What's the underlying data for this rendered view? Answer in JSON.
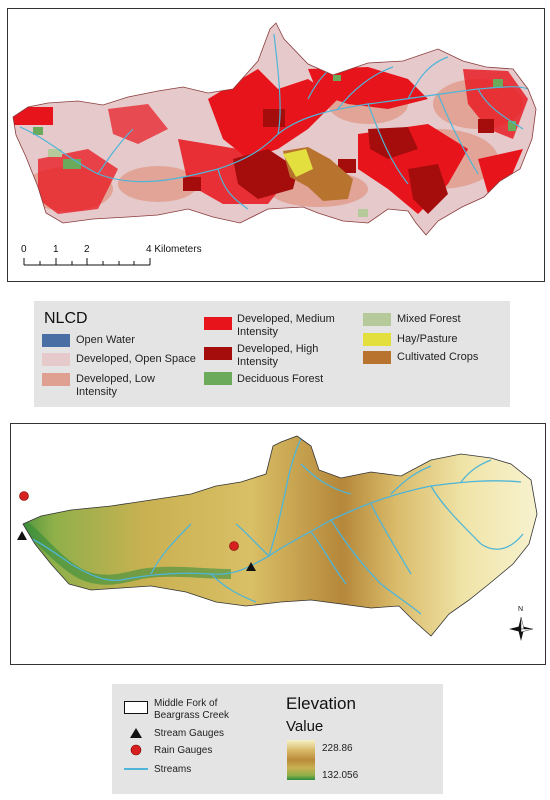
{
  "scale_bar": {
    "labels": [
      "0",
      "1",
      "2",
      "4 Kilometers"
    ]
  },
  "nlcd_legend": {
    "title": "NLCD",
    "items": [
      {
        "label": "Open Water",
        "color": "#4a6fa5"
      },
      {
        "label": "Developed, Open Space",
        "color": "#e6c9cb"
      },
      {
        "label": "Developed, Low Intensity",
        "color": "#e0a091"
      },
      {
        "label": "Developed, Medium Intensity",
        "color": "#e8141c"
      },
      {
        "label": "Developed, High Intensity",
        "color": "#a50d0d"
      },
      {
        "label": "Deciduous Forest",
        "color": "#6aaa5a"
      },
      {
        "label": "Mixed Forest",
        "color": "#b5c99a"
      },
      {
        "label": "Hay/Pasture",
        "color": "#e3df3f"
      },
      {
        "label": "Cultivated Crops",
        "color": "#b8732f"
      }
    ]
  },
  "map_legend": {
    "watershed_label": "Middle Fork of Beargrass Creek",
    "stream_gauges_label": "Stream Gauges",
    "rain_gauges_label": "Rain Gauges",
    "streams_label": "Streams",
    "elevation_title": "Elevation",
    "value_title": "Value",
    "max_value": "228.86",
    "min_value": "132.056",
    "colors": {
      "stream": "#4fb5d8",
      "rain_gauge": "#d62020",
      "stream_gauge": "#111111",
      "elev_high": "#f4f1c6",
      "elev_mid": "#b98a3a",
      "elev_low": "#2e8a3a"
    }
  },
  "north_arrow": {
    "label": "N"
  }
}
